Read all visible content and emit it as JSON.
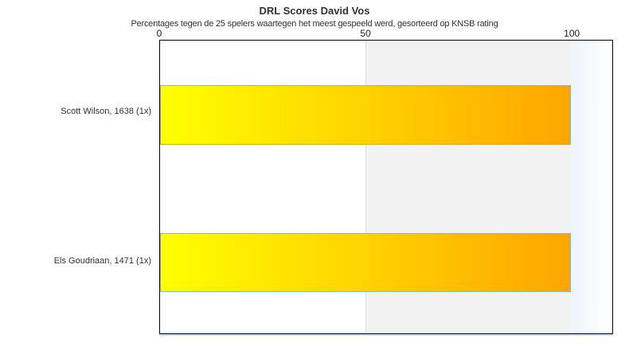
{
  "chart_data": {
    "type": "bar",
    "orientation": "horizontal",
    "title": "DRL Scores David Vos",
    "subtitle": "Percentages tegen de 25 spelers waartegen het meest gespeeld werd, gesorteerd op KNSB rating",
    "categories": [
      "Scott Wilson, 1638 (1x)",
      "Els Goudriaan, 1471 (1x)"
    ],
    "values": [
      100,
      100
    ],
    "xlabel": "",
    "ylabel": "",
    "xlim": [
      0,
      110
    ],
    "xticks": [
      0,
      50,
      100
    ],
    "legend_position": "none",
    "grid": "background-band-50-100",
    "colors": {
      "bar_gradient_start": "#ffff00",
      "bar_gradient_end": "#ffa500",
      "bar_border": "#7cb5ec",
      "band_gray": "#f2f2f2",
      "overflow_band": "#edf5fb",
      "plot_border": "#000000",
      "text": "#333333"
    }
  }
}
